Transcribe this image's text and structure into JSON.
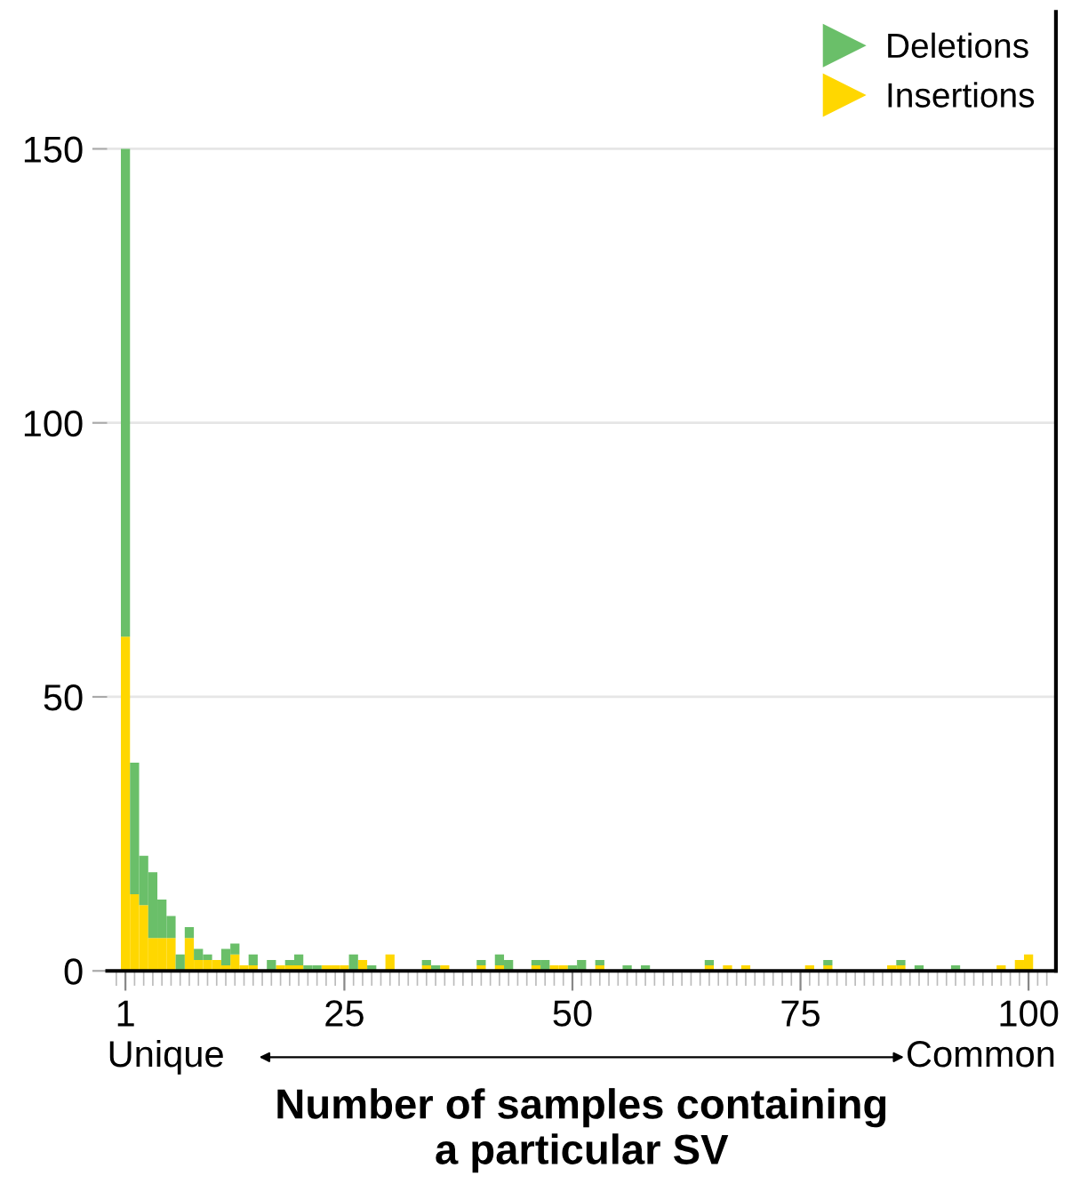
{
  "chart_data": {
    "type": "bar",
    "stacked": true,
    "x": [
      1,
      2,
      3,
      4,
      5,
      6,
      7,
      8,
      9,
      10,
      11,
      12,
      13,
      14,
      15,
      16,
      17,
      18,
      19,
      20,
      21,
      22,
      23,
      24,
      25,
      26,
      27,
      28,
      29,
      30,
      31,
      32,
      33,
      34,
      35,
      36,
      37,
      38,
      39,
      40,
      41,
      42,
      43,
      44,
      45,
      46,
      47,
      48,
      49,
      50,
      51,
      52,
      53,
      54,
      55,
      56,
      57,
      58,
      59,
      60,
      61,
      62,
      63,
      64,
      65,
      66,
      67,
      68,
      69,
      70,
      71,
      72,
      73,
      74,
      75,
      76,
      77,
      78,
      79,
      80,
      81,
      82,
      83,
      84,
      85,
      86,
      87,
      88,
      89,
      90,
      91,
      92,
      93,
      94,
      95,
      96,
      97,
      98,
      99,
      100
    ],
    "series": [
      {
        "name": "Insertions",
        "color": "#ffd700",
        "values": [
          61,
          14,
          12,
          6,
          6,
          6,
          0,
          6,
          2,
          2,
          2,
          1,
          3,
          1,
          1,
          0,
          0,
          1,
          1,
          1,
          0,
          0,
          1,
          1,
          1,
          0,
          2,
          0,
          0,
          3,
          0,
          0,
          0,
          1,
          0,
          1,
          0,
          0,
          0,
          1,
          0,
          1,
          0,
          0,
          0,
          1,
          0,
          1,
          1,
          0,
          0,
          0,
          1,
          0,
          0,
          0,
          0,
          0,
          0,
          0,
          0,
          0,
          0,
          0,
          1,
          0,
          1,
          0,
          1,
          0,
          0,
          0,
          0,
          0,
          0,
          1,
          0,
          1,
          0,
          0,
          0,
          0,
          0,
          0,
          1,
          1,
          0,
          0,
          0,
          0,
          0,
          0,
          0,
          0,
          0,
          0,
          1,
          0,
          2,
          3
        ]
      },
      {
        "name": "Deletions",
        "color": "#6abf69",
        "values": [
          89,
          24,
          9,
          12,
          7,
          4,
          3,
          2,
          2,
          1,
          0,
          3,
          2,
          0,
          2,
          0,
          2,
          0,
          1,
          2,
          1,
          1,
          0,
          0,
          0,
          3,
          0,
          1,
          0,
          0,
          0,
          0,
          0,
          1,
          1,
          0,
          0,
          0,
          0,
          1,
          0,
          2,
          2,
          0,
          0,
          1,
          2,
          0,
          0,
          1,
          2,
          0,
          1,
          0,
          0,
          1,
          0,
          1,
          0,
          0,
          0,
          0,
          0,
          0,
          1,
          0,
          0,
          0,
          0,
          0,
          0,
          0,
          0,
          0,
          0,
          0,
          0,
          1,
          0,
          0,
          0,
          0,
          0,
          0,
          0,
          1,
          0,
          1,
          0,
          0,
          0,
          1,
          0,
          0,
          0,
          0,
          0,
          0,
          0,
          0
        ]
      }
    ],
    "xlim": [
      -1,
      103
    ],
    "xticks": [
      1,
      25,
      50,
      75,
      100
    ],
    "ylim": [
      0,
      175
    ],
    "yticks": [
      0,
      50,
      100,
      150
    ],
    "xlabel": "Number of samples containing\na particular SV",
    "annotations": [
      "Unique",
      "Common"
    ],
    "grid": "y",
    "legend": "top right"
  }
}
